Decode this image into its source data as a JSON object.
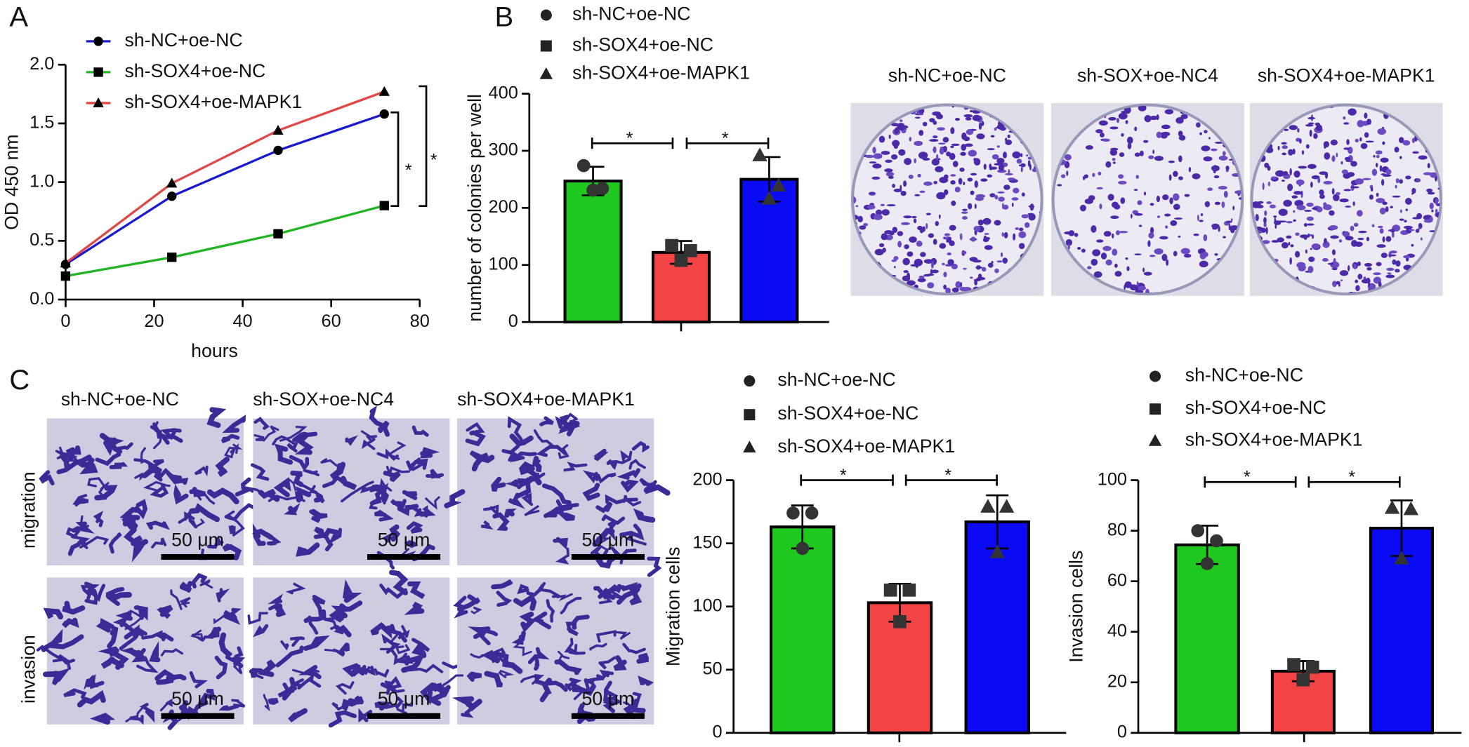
{
  "panel_letters": [
    "A",
    "B",
    "C"
  ],
  "photo_panels": {
    "colony_labels": [
      "sh-NC+oe-NC",
      "sh-SOX+oe-NC4",
      "sh-SOX4+oe-MAPK1"
    ],
    "transwell_column_labels": [
      "sh-NC+oe-NC",
      "sh-SOX+oe-NC4",
      "sh-SOX4+oe-MAPK1"
    ],
    "transwell_row_labels": [
      "migration",
      "invasion"
    ],
    "scale_bar": "50 μm"
  },
  "chart_data": [
    {
      "type": "line",
      "x_label": "hours",
      "y_label": "OD 450 nm",
      "x": [
        0,
        24,
        48,
        72
      ],
      "series": [
        {
          "name": "sh-NC+oe-NC",
          "color": "#1a1ad0",
          "marker": "circle",
          "values": [
            0.3,
            0.88,
            1.27,
            1.58
          ]
        },
        {
          "name": "sh-SOX4+oe-NC",
          "color": "#22b422",
          "marker": "square",
          "values": [
            0.2,
            0.36,
            0.56,
            0.8
          ]
        },
        {
          "name": "sh-SOX4+oe-MAPK1",
          "color": "#e04848",
          "marker": "triangle",
          "values": [
            0.31,
            0.99,
            1.44,
            1.77
          ]
        }
      ],
      "xlim": [
        0,
        80
      ],
      "xticks": [
        0,
        20,
        40,
        60,
        80
      ],
      "ylim": [
        0,
        2
      ],
      "yticks": [
        {
          "value": 0,
          "label": "0.0"
        },
        0.5,
        {
          "value": 1,
          "label": "1.0"
        },
        1.5,
        {
          "value": 2,
          "label": "2.0"
        }
      ],
      "annotations": [
        "*",
        "*"
      ]
    },
    {
      "type": "bar",
      "y_label": "number of colonies per well",
      "series": [
        {
          "name": "sh-NC+oe-NC",
          "color": "#1ec81e",
          "marker": "circle",
          "values": [
            247
          ],
          "errors": [
            25
          ],
          "points": [
            274,
            234,
            231
          ]
        },
        {
          "name": "sh-SOX4+oe-NC",
          "color": "#f24444",
          "marker": "square",
          "values": [
            122
          ],
          "errors": [
            20
          ],
          "points": [
            134,
            125,
            108
          ]
        },
        {
          "name": "sh-SOX4+oe-MAPK1",
          "color": "#0a0af5",
          "marker": "triangle",
          "values": [
            250
          ],
          "errors": [
            39
          ],
          "points": [
            292,
            239,
            216
          ]
        }
      ],
      "ylim": [
        0,
        400
      ],
      "yticks": [
        0,
        100,
        200,
        300,
        400
      ],
      "annotations": [
        "*",
        "*"
      ]
    },
    {
      "type": "bar",
      "y_label": "Migration cells",
      "series": [
        {
          "name": "sh-NC+oe-NC",
          "color": "#1ec81e",
          "marker": "circle",
          "values": [
            163
          ],
          "errors": [
            17
          ],
          "points": [
            174,
            174,
            146
          ]
        },
        {
          "name": "sh-SOX4+oe-NC",
          "color": "#f24444",
          "marker": "square",
          "values": [
            103
          ],
          "errors": [
            15
          ],
          "points": [
            113,
            113,
            88
          ]
        },
        {
          "name": "sh-SOX4+oe-MAPK1",
          "color": "#0a0af5",
          "marker": "triangle",
          "values": [
            167
          ],
          "errors": [
            21
          ],
          "points": [
            179,
            179,
            143
          ]
        }
      ],
      "ylim": [
        0,
        200
      ],
      "yticks": [
        0,
        50,
        100,
        150,
        200
      ],
      "annotations": [
        "*",
        "*"
      ]
    },
    {
      "type": "bar",
      "y_label": "Invasion cells",
      "series": [
        {
          "name": "sh-NC+oe-NC",
          "color": "#1ec81e",
          "marker": "circle",
          "values": [
            74.4
          ],
          "errors": [
            7.6
          ],
          "points": [
            80,
            76,
            67
          ]
        },
        {
          "name": "sh-SOX4+oe-NC",
          "color": "#f24444",
          "marker": "square",
          "values": [
            24.4
          ],
          "errors": [
            4
          ],
          "points": [
            27,
            26,
            21
          ]
        },
        {
          "name": "sh-SOX4+oe-MAPK1",
          "color": "#0a0af5",
          "marker": "triangle",
          "values": [
            81
          ],
          "errors": [
            11
          ],
          "points": [
            89,
            88.5,
            69
          ]
        }
      ],
      "ylim": [
        0,
        100
      ],
      "yticks": [
        0,
        20,
        40,
        60,
        80,
        100
      ],
      "annotations": [
        "*",
        "*"
      ]
    }
  ]
}
